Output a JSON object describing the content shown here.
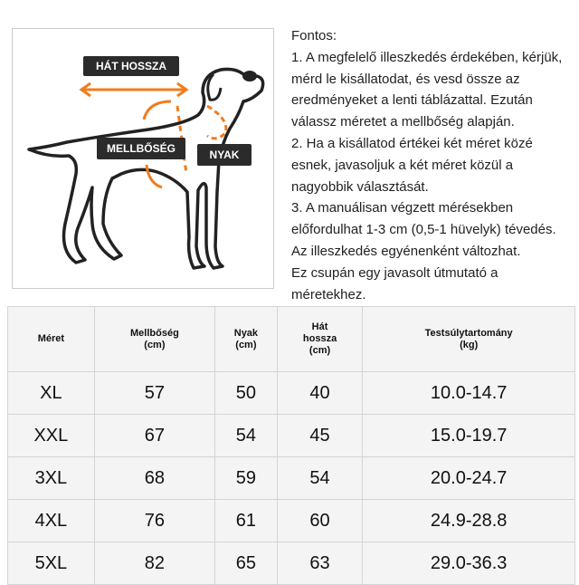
{
  "diagram": {
    "labels": {
      "back_length": "HÁT HOSSZA",
      "chest": "MELLBŐSÉG",
      "neck": "NYAK"
    },
    "accent_color": "#f07c1e",
    "label_bg": "#2b2b2b"
  },
  "notes": [
    "Fontos:",
    "1. A megfelelő illeszkedés érdekében, kérjük,",
    "mérd le kisállatodat, és vesd össze az",
    "eredményeket a lenti táblázattal. Ezután",
    "válassz méretet a mellbőség alapján.",
    "2. Ha a kisállatod értékei két méret közé",
    "esnek, javasoljuk a két méret közül a",
    "nagyobbik választását.",
    "3. A manuálisan végzett mérésekben",
    "előfordulhat 1-3 cm (0,5-1 hüvelyk) tévedés.",
    "Az illeszkedés egyénenként változhat.",
    "Ez csupán egy javasolt útmutató a",
    "méretekhez."
  ],
  "table": {
    "headers": [
      [
        "Méret"
      ],
      [
        "Mellbőség",
        "(cm)"
      ],
      [
        "Nyak",
        "(cm)"
      ],
      [
        "Hát",
        "hossza",
        "(cm)"
      ],
      [
        "Testsúlytartomány",
        "(kg)"
      ]
    ],
    "rows": [
      [
        "XL",
        "57",
        "50",
        "40",
        "10.0-14.7"
      ],
      [
        "XXL",
        "67",
        "54",
        "45",
        "15.0-19.7"
      ],
      [
        "3XL",
        "68",
        "59",
        "54",
        "20.0-24.7"
      ],
      [
        "4XL",
        "76",
        "61",
        "60",
        "24.9-28.8"
      ],
      [
        "5XL",
        "82",
        "65",
        "63",
        "29.0-36.3"
      ]
    ]
  }
}
